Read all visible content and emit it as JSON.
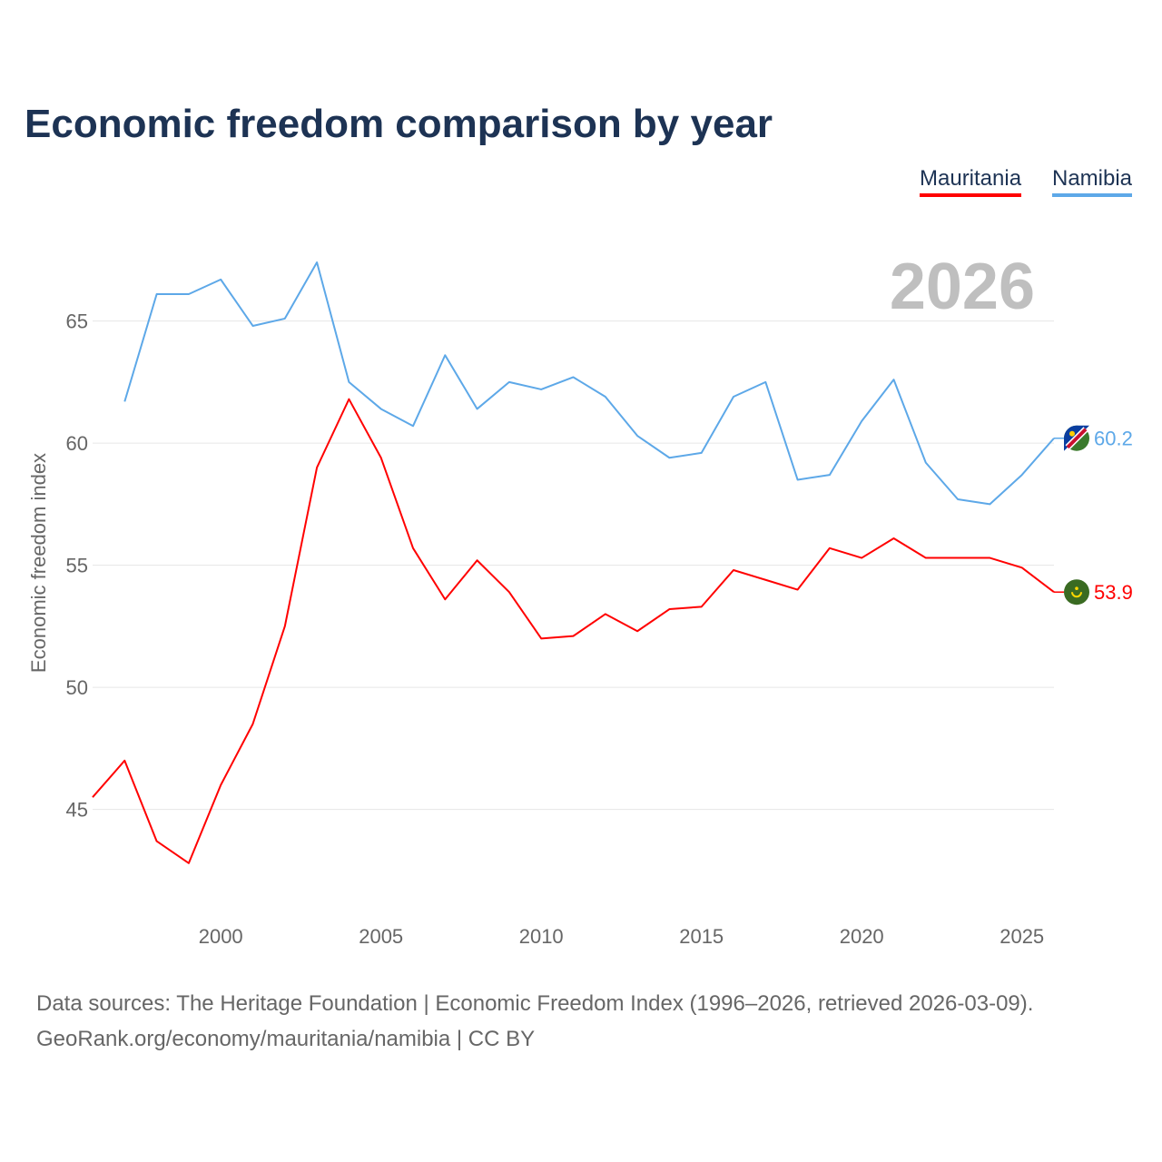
{
  "title": "Economic freedom comparison by year",
  "legend": [
    {
      "name": "Mauritania",
      "color": "#ff0000"
    },
    {
      "name": "Namibia",
      "color": "#5da8e8"
    }
  ],
  "year_label": "2026",
  "source_line1": "Data sources: The Heritage Foundation | Economic Freedom Index (1996–2026, retrieved 2026-03-09).",
  "source_line2": "GeoRank.org/economy/mauritania/namibia | CC BY",
  "chart_data": {
    "type": "line",
    "title": "Economic freedom comparison by year",
    "xlabel": "",
    "ylabel": "Economic freedom index",
    "xlim": [
      1996,
      2026
    ],
    "ylim": [
      40.6,
      69
    ],
    "xticks": [
      2000,
      2005,
      2010,
      2015,
      2020,
      2025
    ],
    "yticks": [
      45,
      50,
      55,
      60,
      65
    ],
    "grid": true,
    "legend_placement": "top-right",
    "series": [
      {
        "name": "Mauritania",
        "color": "#ff0000",
        "end_label": "53.9",
        "x": [
          1996,
          1997,
          1998,
          1999,
          2000,
          2001,
          2002,
          2003,
          2004,
          2005,
          2006,
          2007,
          2008,
          2009,
          2010,
          2011,
          2012,
          2013,
          2014,
          2015,
          2016,
          2017,
          2018,
          2019,
          2020,
          2021,
          2022,
          2023,
          2024,
          2025,
          2026
        ],
        "values": [
          45.5,
          47.0,
          43.7,
          42.8,
          46.0,
          48.5,
          52.5,
          59.0,
          61.8,
          59.4,
          55.7,
          53.6,
          55.2,
          53.9,
          52.0,
          52.1,
          53.0,
          52.3,
          53.2,
          53.3,
          54.8,
          54.4,
          54.0,
          55.7,
          55.3,
          56.1,
          55.3,
          55.3,
          55.3,
          54.9,
          53.9
        ]
      },
      {
        "name": "Namibia",
        "color": "#5da8e8",
        "end_label": "60.2",
        "x": [
          1997,
          1998,
          1999,
          2000,
          2001,
          2002,
          2003,
          2004,
          2005,
          2006,
          2007,
          2008,
          2009,
          2010,
          2011,
          2012,
          2013,
          2014,
          2015,
          2016,
          2017,
          2018,
          2019,
          2020,
          2021,
          2022,
          2023,
          2024,
          2025,
          2026
        ],
        "values": [
          61.7,
          66.1,
          66.1,
          66.7,
          64.8,
          65.1,
          67.4,
          62.5,
          61.4,
          60.7,
          63.6,
          61.4,
          62.5,
          62.2,
          62.7,
          61.9,
          60.3,
          59.4,
          59.6,
          61.9,
          62.5,
          58.5,
          58.7,
          60.9,
          62.6,
          59.2,
          57.7,
          57.5,
          58.7,
          60.2
        ]
      }
    ]
  }
}
